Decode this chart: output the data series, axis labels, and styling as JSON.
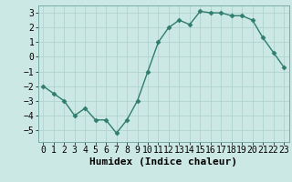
{
  "x": [
    0,
    1,
    2,
    3,
    4,
    5,
    6,
    7,
    8,
    9,
    10,
    11,
    12,
    13,
    14,
    15,
    16,
    17,
    18,
    19,
    20,
    21,
    22,
    23
  ],
  "y": [
    -2.0,
    -2.5,
    -3.0,
    -4.0,
    -3.5,
    -4.3,
    -4.3,
    -5.2,
    -4.3,
    -3.0,
    -1.0,
    1.0,
    2.0,
    2.5,
    2.2,
    3.1,
    3.0,
    3.0,
    2.8,
    2.8,
    2.5,
    1.3,
    0.3,
    -0.7
  ],
  "line_color": "#2e7d6e",
  "marker": "D",
  "marker_size": 2.5,
  "bg_color": "#cce8e4",
  "grid_color": "#b0d4cf",
  "xlabel": "Humidex (Indice chaleur)",
  "xlabel_fontsize": 8,
  "tick_fontsize": 7,
  "ylim": [
    -5.8,
    3.5
  ],
  "xlim": [
    -0.5,
    23.5
  ],
  "yticks": [
    -5,
    -4,
    -3,
    -2,
    -1,
    0,
    1,
    2,
    3
  ],
  "xticks": [
    0,
    1,
    2,
    3,
    4,
    5,
    6,
    7,
    8,
    9,
    10,
    11,
    12,
    13,
    14,
    15,
    16,
    17,
    18,
    19,
    20,
    21,
    22,
    23
  ]
}
